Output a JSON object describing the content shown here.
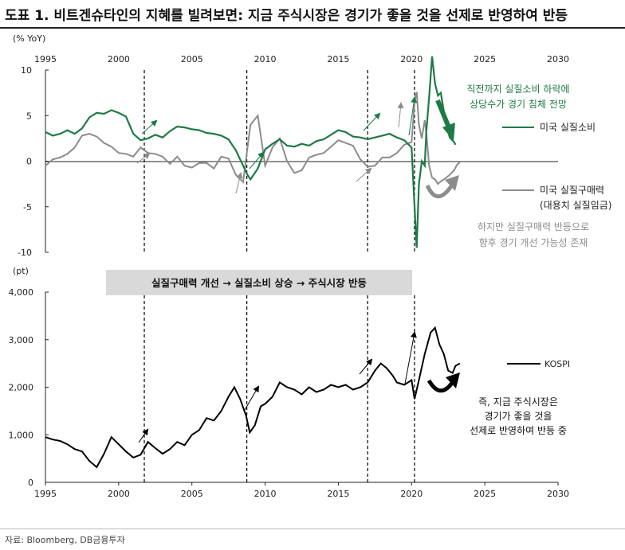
{
  "title": "도표 1. 비트겐슈타인의 지혜를 빌려보면: 지금 주식시장은 경기가 좋을 것을 선제로 반영하여 반등",
  "source": "자료: Bloomberg, DB금융투자",
  "colors": {
    "green": "#1e7a46",
    "gray": "#8c8c8c",
    "black": "#000000",
    "banner_bg": "#d9d9d9"
  },
  "chart_data": [
    {
      "type": "line",
      "unit_label": "(% YoY)",
      "xlim": [
        1995,
        2030
      ],
      "x_ticks": [
        "1995",
        "2000",
        "2005",
        "2010",
        "2015",
        "2020",
        "2025",
        "2030"
      ],
      "ylim": [
        -10,
        10
      ],
      "y_ticks": [
        "10",
        "5",
        "0",
        "-5",
        "-10"
      ],
      "series": [
        {
          "name": "미국 실질소비",
          "color": "#1e7a46",
          "points": [
            [
              1995,
              3.2
            ],
            [
              1995.5,
              2.8
            ],
            [
              1996,
              3.0
            ],
            [
              1996.5,
              3.4
            ],
            [
              1997,
              3.0
            ],
            [
              1997.5,
              3.6
            ],
            [
              1998,
              4.8
            ],
            [
              1998.5,
              5.3
            ],
            [
              1999,
              5.2
            ],
            [
              1999.5,
              5.6
            ],
            [
              2000,
              5.3
            ],
            [
              2000.5,
              4.9
            ],
            [
              2001,
              3.0
            ],
            [
              2001.5,
              2.3
            ],
            [
              2002,
              2.5
            ],
            [
              2002.5,
              2.9
            ],
            [
              2003,
              2.6
            ],
            [
              2003.5,
              3.3
            ],
            [
              2004,
              3.8
            ],
            [
              2004.5,
              3.7
            ],
            [
              2005,
              3.5
            ],
            [
              2005.5,
              3.4
            ],
            [
              2006,
              3.1
            ],
            [
              2006.5,
              3.0
            ],
            [
              2007,
              2.8
            ],
            [
              2007.5,
              2.4
            ],
            [
              2008,
              1.2
            ],
            [
              2008.5,
              -0.5
            ],
            [
              2008.8,
              -1.5
            ],
            [
              2009,
              -2.0
            ],
            [
              2009.5,
              -0.8
            ],
            [
              2010,
              1.3
            ],
            [
              2010.5,
              1.9
            ],
            [
              2011,
              2.4
            ],
            [
              2011.5,
              1.7
            ],
            [
              2012,
              1.6
            ],
            [
              2012.5,
              1.9
            ],
            [
              2013,
              1.7
            ],
            [
              2013.5,
              2.2
            ],
            [
              2014,
              2.4
            ],
            [
              2014.5,
              2.9
            ],
            [
              2015,
              3.4
            ],
            [
              2015.5,
              3.2
            ],
            [
              2016,
              2.7
            ],
            [
              2016.5,
              2.6
            ],
            [
              2017,
              2.4
            ],
            [
              2017.5,
              2.6
            ],
            [
              2018,
              2.8
            ],
            [
              2018.5,
              3.0
            ],
            [
              2019,
              2.6
            ],
            [
              2019.5,
              2.3
            ],
            [
              2020,
              1.5
            ],
            [
              2020.2,
              -5.0
            ],
            [
              2020.35,
              -9.5
            ],
            [
              2020.5,
              -2.5
            ],
            [
              2020.7,
              0.0
            ],
            [
              2020.9,
              -0.5
            ],
            [
              2021,
              3.2
            ],
            [
              2021.2,
              7.0
            ],
            [
              2021.4,
              11.5
            ],
            [
              2021.6,
              8.5
            ],
            [
              2021.8,
              7.2
            ],
            [
              2022,
              7.5
            ],
            [
              2022.3,
              4.5
            ],
            [
              2022.6,
              2.6
            ],
            [
              2022.9,
              2.1
            ],
            [
              2023,
              1.8
            ]
          ]
        },
        {
          "name": "미국 실질구매력",
          "subname": "(대용치 실질임금)",
          "color": "#8c8c8c",
          "points": [
            [
              1995,
              -0.5
            ],
            [
              1995.5,
              0.2
            ],
            [
              1996,
              0.4
            ],
            [
              1996.5,
              0.8
            ],
            [
              1997,
              1.5
            ],
            [
              1997.5,
              2.8
            ],
            [
              1998,
              3.0
            ],
            [
              1998.5,
              2.7
            ],
            [
              1999,
              2.0
            ],
            [
              1999.5,
              1.6
            ],
            [
              2000,
              0.9
            ],
            [
              2000.5,
              0.8
            ],
            [
              2001,
              0.5
            ],
            [
              2001.5,
              1.5
            ],
            [
              2002,
              0.9
            ],
            [
              2002.5,
              0.8
            ],
            [
              2003,
              0.5
            ],
            [
              2003.5,
              -0.3
            ],
            [
              2004,
              0.5
            ],
            [
              2004.5,
              -0.5
            ],
            [
              2005,
              -0.7
            ],
            [
              2005.5,
              -0.2
            ],
            [
              2006,
              -0.2
            ],
            [
              2006.5,
              -0.8
            ],
            [
              2007,
              0.5
            ],
            [
              2007.5,
              0.3
            ],
            [
              2008,
              -1.5
            ],
            [
              2008.5,
              -2.3
            ],
            [
              2008.8,
              1.5
            ],
            [
              2009,
              4.0
            ],
            [
              2009.5,
              5.0
            ],
            [
              2010,
              -0.5
            ],
            [
              2010.5,
              1.5
            ],
            [
              2011,
              2.5
            ],
            [
              2011.5,
              0.0
            ],
            [
              2012,
              -1.3
            ],
            [
              2012.5,
              -1.0
            ],
            [
              2013,
              0.4
            ],
            [
              2013.5,
              0.7
            ],
            [
              2014,
              0.9
            ],
            [
              2014.5,
              1.6
            ],
            [
              2015,
              2.3
            ],
            [
              2015.5,
              2.0
            ],
            [
              2016,
              1.7
            ],
            [
              2016.5,
              0.2
            ],
            [
              2017,
              -0.6
            ],
            [
              2017.5,
              -0.5
            ],
            [
              2018,
              0.4
            ],
            [
              2018.5,
              0.4
            ],
            [
              2019,
              0.9
            ],
            [
              2019.5,
              1.8
            ],
            [
              2020,
              2.1
            ],
            [
              2020.2,
              6.5
            ],
            [
              2020.35,
              7.6
            ],
            [
              2020.5,
              4.0
            ],
            [
              2020.7,
              2.5
            ],
            [
              2020.9,
              4.5
            ],
            [
              2021,
              3.2
            ],
            [
              2021.2,
              -0.5
            ],
            [
              2021.4,
              -1.8
            ],
            [
              2021.6,
              -2.0
            ],
            [
              2021.8,
              -2.5
            ],
            [
              2022,
              -2.2
            ],
            [
              2022.3,
              -1.9
            ],
            [
              2022.6,
              -1.5
            ],
            [
              2022.9,
              -1.0
            ],
            [
              2023.1,
              -0.4
            ],
            [
              2023.3,
              -0.1
            ]
          ]
        }
      ],
      "annotations": [
        {
          "text": "직전까지 실질소비 하락에",
          "color": "#1e7a46"
        },
        {
          "text": "상당수가 경기 침체 전망",
          "color": "#1e7a46"
        },
        {
          "text": "하지만 실질구매력 반등으로",
          "color": "#8c8c8c"
        },
        {
          "text": "향후 경기 개선 가능성 존재",
          "color": "#8c8c8c"
        }
      ],
      "event_lines": [
        2001.75,
        2008.75,
        2017.0,
        2020.2
      ]
    },
    {
      "type": "line",
      "unit_label": "(pt)",
      "xlim": [
        1995,
        2030
      ],
      "x_ticks": [
        "1995",
        "2000",
        "2005",
        "2010",
        "2015",
        "2020",
        "2025",
        "2030"
      ],
      "ylim": [
        0,
        4000
      ],
      "y_ticks": [
        "4,000",
        "3,000",
        "2,000",
        "1,000",
        "0"
      ],
      "banner": "실질구매력 개선 → 실질소비 상승 → 주식시장 반등",
      "series": [
        {
          "name": "KOSPI",
          "color": "#000000",
          "points": [
            [
              1995,
              950
            ],
            [
              1995.5,
              900
            ],
            [
              1996,
              870
            ],
            [
              1996.5,
              800
            ],
            [
              1997,
              700
            ],
            [
              1997.5,
              650
            ],
            [
              1998,
              450
            ],
            [
              1998.5,
              320
            ],
            [
              1999,
              600
            ],
            [
              1999.5,
              950
            ],
            [
              2000,
              800
            ],
            [
              2000.5,
              650
            ],
            [
              2001,
              520
            ],
            [
              2001.5,
              580
            ],
            [
              2002,
              850
            ],
            [
              2002.5,
              720
            ],
            [
              2003,
              600
            ],
            [
              2003.5,
              700
            ],
            [
              2004,
              850
            ],
            [
              2004.5,
              780
            ],
            [
              2005,
              1000
            ],
            [
              2005.5,
              1100
            ],
            [
              2006,
              1350
            ],
            [
              2006.5,
              1300
            ],
            [
              2007,
              1500
            ],
            [
              2007.5,
              1800
            ],
            [
              2007.9,
              2000
            ],
            [
              2008.3,
              1750
            ],
            [
              2008.7,
              1400
            ],
            [
              2008.95,
              1050
            ],
            [
              2009.3,
              1200
            ],
            [
              2009.7,
              1600
            ],
            [
              2010,
              1650
            ],
            [
              2010.5,
              1800
            ],
            [
              2011,
              2100
            ],
            [
              2011.5,
              2000
            ],
            [
              2012,
              1950
            ],
            [
              2012.5,
              1850
            ],
            [
              2013,
              2000
            ],
            [
              2013.5,
              1900
            ],
            [
              2014,
              1950
            ],
            [
              2014.5,
              2050
            ],
            [
              2015,
              2000
            ],
            [
              2015.5,
              2050
            ],
            [
              2016,
              1950
            ],
            [
              2016.5,
              2000
            ],
            [
              2017,
              2100
            ],
            [
              2017.5,
              2350
            ],
            [
              2017.9,
              2500
            ],
            [
              2018.3,
              2400
            ],
            [
              2018.7,
              2250
            ],
            [
              2019,
              2100
            ],
            [
              2019.5,
              2050
            ],
            [
              2020,
              2150
            ],
            [
              2020.2,
              1750
            ],
            [
              2020.5,
              2150
            ],
            [
              2020.9,
              2700
            ],
            [
              2021.3,
              3150
            ],
            [
              2021.6,
              3250
            ],
            [
              2021.9,
              2900
            ],
            [
              2022.2,
              2700
            ],
            [
              2022.5,
              2350
            ],
            [
              2022.8,
              2300
            ],
            [
              2023,
              2450
            ],
            [
              2023.3,
              2500
            ]
          ]
        }
      ],
      "annotations": [
        {
          "text": "즉, 지금 주식시장은",
          "color": "#000000"
        },
        {
          "text": "경기가 좋을 것을",
          "color": "#000000"
        },
        {
          "text": "선제로 반영하여 반등 중",
          "color": "#000000"
        }
      ],
      "event_lines": [
        2001.75,
        2008.75,
        2017.0,
        2020.2
      ]
    }
  ]
}
